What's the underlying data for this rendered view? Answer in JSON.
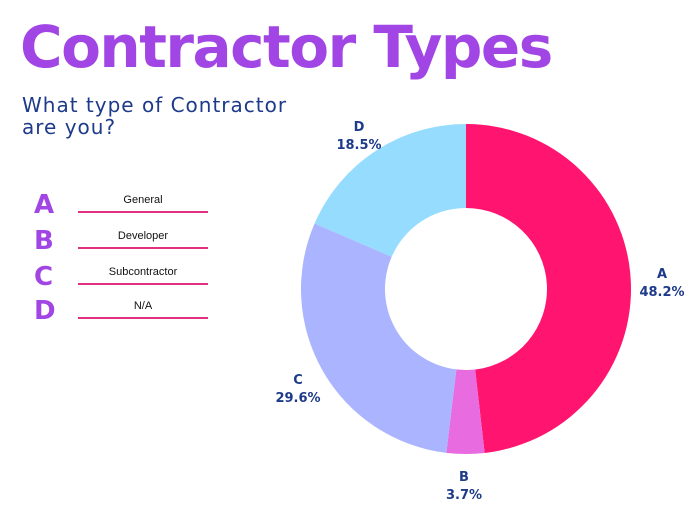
{
  "header": {
    "title": "Contractor Types",
    "subtitle": "What type of Contractor are you?"
  },
  "key": [
    {
      "letter": "A",
      "text": "General"
    },
    {
      "letter": "B",
      "text": "Developer"
    },
    {
      "letter": "C",
      "text": "Subcontractor"
    },
    {
      "letter": "D",
      "text": "N/A"
    }
  ],
  "colors": {
    "title": "#a146e4",
    "subtitle": "#1e3a8a",
    "key_line": "#e0307e",
    "label": "#1e3a8a"
  },
  "chart_data": {
    "type": "pie",
    "donut": true,
    "categories": [
      "A",
      "B",
      "C",
      "D"
    ],
    "values": [
      48.2,
      3.7,
      29.6,
      18.5
    ],
    "labels": [
      "48.2%",
      "3.7%",
      "29.6%",
      "18.5%"
    ],
    "colors": [
      "#ff1470",
      "#e86be0",
      "#aab4ff",
      "#96dcff"
    ],
    "start_angle_deg": 0,
    "direction": "clockwise"
  }
}
